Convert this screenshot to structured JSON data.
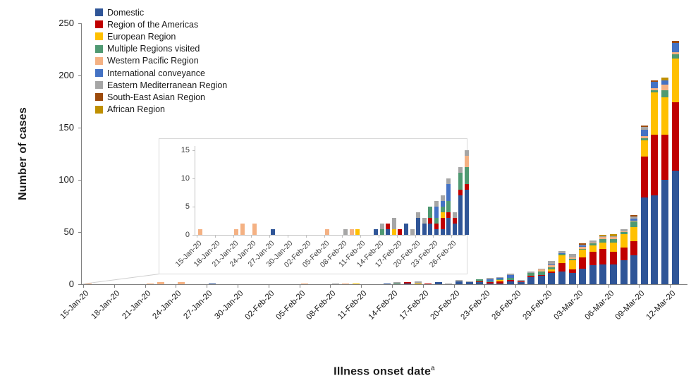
{
  "page": {
    "background": "#ffffff"
  },
  "labels": {
    "y_title": "Number of cases",
    "x_title": "Illness onset date",
    "x_title_superscript": "a"
  },
  "legend": {
    "items": [
      {
        "name": "Domestic",
        "color": "#2F5597"
      },
      {
        "name": "Region of the Americas",
        "color": "#C00000"
      },
      {
        "name": "European Region",
        "color": "#FFC000"
      },
      {
        "name": "Multiple Regions visited",
        "color": "#4F9972"
      },
      {
        "name": "Western Pacific Region",
        "color": "#F4B183"
      },
      {
        "name": "International conveyance",
        "color": "#4472C4"
      },
      {
        "name": "Eastern Mediterranean Region",
        "color": "#A6A6A6"
      },
      {
        "name": "South-East Asian Region",
        "color": "#9C4A0B"
      },
      {
        "name": "African Region",
        "color": "#BF8F00"
      }
    ]
  },
  "chart_data": {
    "type": "bar",
    "stacked": true,
    "title": "",
    "ylabel": "Number of cases",
    "xlabel": "Illness onset date (superscript a)",
    "ylim": [
      0,
      250
    ],
    "y_ticks": [
      0,
      50,
      100,
      150,
      200,
      250
    ],
    "x_start": "15-Jan-20",
    "x_end": "12-Mar-20",
    "n_days": 58,
    "x_tick_interval_days": 3,
    "x_tick_labels": [
      "15-Jan-20",
      "18-Jan-20",
      "21-Jan-20",
      "24-Jan-20",
      "27-Jan-20",
      "30-Jan-20",
      "02-Feb-20",
      "05-Feb-20",
      "08-Feb-20",
      "11-Feb-20",
      "14-Feb-20",
      "17-Feb-20",
      "20-Feb-20",
      "23-Feb-20",
      "26-Feb-20",
      "29-Feb-20",
      "03-Mar-20",
      "06-Mar-20",
      "09-Mar-20",
      "12-Mar-20"
    ],
    "series_order": [
      "Domestic",
      "Region of the Americas",
      "European Region",
      "Multiple Regions visited",
      "Western Pacific Region",
      "International conveyance",
      "Eastern Mediterranean Region",
      "South-East Asian Region",
      "African Region"
    ],
    "legend_position": "top-left",
    "grid": false,
    "data": [
      {
        "date": "15-Jan-20",
        "day_index": 0,
        "counts": [
          0,
          0,
          0,
          0,
          1,
          0,
          0,
          0,
          0
        ]
      },
      {
        "date": "21-Jan-20",
        "day_index": 6,
        "counts": [
          0,
          0,
          0,
          0,
          1,
          0,
          0,
          0,
          0
        ]
      },
      {
        "date": "22-Jan-20",
        "day_index": 7,
        "counts": [
          0,
          0,
          0,
          0,
          2,
          0,
          0,
          0,
          0
        ]
      },
      {
        "date": "24-Jan-20",
        "day_index": 9,
        "counts": [
          0,
          0,
          0,
          0,
          2,
          0,
          0,
          0,
          0
        ]
      },
      {
        "date": "27-Jan-20",
        "day_index": 12,
        "counts": [
          1,
          0,
          0,
          0,
          0,
          0,
          0,
          0,
          0
        ]
      },
      {
        "date": "05-Feb-20",
        "day_index": 21,
        "counts": [
          0,
          0,
          0,
          0,
          1,
          0,
          0,
          0,
          0
        ]
      },
      {
        "date": "08-Feb-20",
        "day_index": 24,
        "counts": [
          0,
          0,
          0,
          0,
          0,
          0,
          1,
          0,
          0
        ]
      },
      {
        "date": "09-Feb-20",
        "day_index": 25,
        "counts": [
          0,
          0,
          0,
          0,
          1,
          0,
          0,
          0,
          0
        ]
      },
      {
        "date": "10-Feb-20",
        "day_index": 26,
        "counts": [
          0,
          0,
          1,
          0,
          0,
          0,
          0,
          0,
          0
        ]
      },
      {
        "date": "13-Feb-20",
        "day_index": 29,
        "counts": [
          1,
          0,
          0,
          0,
          0,
          0,
          0,
          0,
          0
        ]
      },
      {
        "date": "14-Feb-20",
        "day_index": 30,
        "counts": [
          0,
          0,
          0,
          1,
          0,
          0,
          1,
          0,
          0
        ]
      },
      {
        "date": "15-Feb-20",
        "day_index": 31,
        "counts": [
          1,
          1,
          0,
          0,
          0,
          0,
          0,
          0,
          0
        ]
      },
      {
        "date": "16-Feb-20",
        "day_index": 32,
        "counts": [
          0,
          0,
          1,
          0,
          0,
          0,
          2,
          0,
          0
        ]
      },
      {
        "date": "17-Feb-20",
        "day_index": 33,
        "counts": [
          0,
          1,
          0,
          0,
          0,
          0,
          0,
          0,
          0
        ]
      },
      {
        "date": "18-Feb-20",
        "day_index": 34,
        "counts": [
          2,
          0,
          0,
          0,
          0,
          0,
          0,
          0,
          0
        ]
      },
      {
        "date": "19-Feb-20",
        "day_index": 35,
        "counts": [
          0,
          0,
          0,
          0,
          0,
          0,
          1,
          0,
          0
        ]
      },
      {
        "date": "20-Feb-20",
        "day_index": 36,
        "counts": [
          3,
          0,
          0,
          0,
          0,
          0,
          1,
          0,
          0
        ]
      },
      {
        "date": "21-Feb-20",
        "day_index": 37,
        "counts": [
          2,
          0,
          0,
          0,
          0,
          0,
          1,
          0,
          0
        ]
      },
      {
        "date": "22-Feb-20",
        "day_index": 38,
        "counts": [
          2,
          1,
          0,
          2,
          0,
          0,
          0,
          0,
          0
        ]
      },
      {
        "date": "23-Feb-20",
        "day_index": 39,
        "counts": [
          1,
          1,
          0,
          1,
          0,
          2,
          1,
          0,
          0
        ]
      },
      {
        "date": "24-Feb-20",
        "day_index": 40,
        "counts": [
          1,
          2,
          1,
          1,
          0,
          1,
          1,
          0,
          0
        ]
      },
      {
        "date": "25-Feb-20",
        "day_index": 41,
        "counts": [
          3,
          1,
          0,
          2,
          0,
          3,
          1,
          0,
          0
        ]
      },
      {
        "date": "26-Feb-20",
        "day_index": 42,
        "counts": [
          2,
          1,
          0,
          0,
          0,
          0,
          1,
          0,
          0
        ]
      },
      {
        "date": "27-Feb-20",
        "day_index": 43,
        "counts": [
          7,
          1,
          0,
          3,
          0,
          0,
          1,
          0,
          0
        ]
      },
      {
        "date": "28-Feb-20",
        "day_index": 44,
        "counts": [
          8,
          1,
          0,
          3,
          2,
          0,
          1,
          0,
          0
        ]
      },
      {
        "date": "29-Feb-20",
        "day_index": 45,
        "counts": [
          11,
          1,
          2,
          2,
          2,
          1,
          3,
          0,
          0
        ]
      },
      {
        "date": "01-Mar-20",
        "day_index": 46,
        "counts": [
          12,
          8,
          8,
          1,
          0,
          1,
          2,
          0,
          0
        ]
      },
      {
        "date": "02-Mar-20",
        "day_index": 47,
        "counts": [
          11,
          3,
          9,
          1,
          2,
          0,
          3,
          0,
          0
        ]
      },
      {
        "date": "03-Mar-20",
        "day_index": 48,
        "counts": [
          15,
          11,
          7,
          1,
          2,
          1,
          1,
          1,
          0
        ]
      },
      {
        "date": "04-Mar-20",
        "day_index": 49,
        "counts": [
          18,
          13,
          6,
          2,
          1,
          0,
          2,
          0,
          0
        ]
      },
      {
        "date": "05-Mar-20",
        "day_index": 50,
        "counts": [
          19,
          15,
          6,
          3,
          2,
          0,
          1,
          0,
          1
        ]
      },
      {
        "date": "06-Mar-20",
        "day_index": 51,
        "counts": [
          19,
          12,
          9,
          3,
          2,
          0,
          1,
          0,
          2
        ]
      },
      {
        "date": "07-Mar-20",
        "day_index": 52,
        "counts": [
          23,
          12,
          13,
          2,
          1,
          0,
          2,
          0,
          0
        ]
      },
      {
        "date": "08-Mar-20",
        "day_index": 53,
        "counts": [
          28,
          13,
          14,
          5,
          1,
          2,
          2,
          1,
          0
        ]
      },
      {
        "date": "09-Mar-20",
        "day_index": 54,
        "counts": [
          83,
          39,
          16,
          2,
          2,
          6,
          3,
          1,
          0
        ]
      },
      {
        "date": "10-Mar-20",
        "day_index": 55,
        "counts": [
          85,
          58,
          41,
          2,
          2,
          6,
          0,
          1,
          0
        ]
      },
      {
        "date": "11-Mar-20",
        "day_index": 56,
        "counts": [
          100,
          43,
          36,
          7,
          5,
          4,
          0,
          0,
          3
        ]
      },
      {
        "date": "12-Mar-20",
        "day_index": 57,
        "counts": [
          109,
          65,
          42,
          4,
          2,
          9,
          0,
          2,
          0
        ]
      }
    ],
    "inset": {
      "description": "magnified view of 15-Jan-20 through 28-Feb-20",
      "ylim": [
        0,
        15
      ],
      "y_ticks": [
        0,
        5,
        10,
        15
      ],
      "day_range": [
        0,
        44
      ],
      "x_tick_labels": [
        "15-Jan-20",
        "18-Jan-20",
        "21-Jan-20",
        "24-Jan-20",
        "27-Jan-20",
        "30-Jan-20",
        "02-Feb-20",
        "05-Feb-20",
        "08-Feb-20",
        "11-Feb-20",
        "14-Feb-20",
        "17-Feb-20",
        "20-Feb-20",
        "23-Feb-20",
        "26-Feb-20"
      ]
    }
  }
}
